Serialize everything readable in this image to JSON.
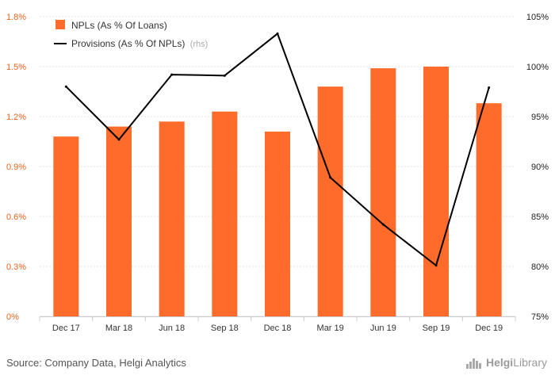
{
  "chart_data": {
    "type": "bar",
    "title": "",
    "categories": [
      "Dec 17",
      "Mar 18",
      "Jun 18",
      "Sep 18",
      "Dec 18",
      "Mar 19",
      "Jun 19",
      "Sep 19",
      "Dec 19"
    ],
    "series": [
      {
        "name": "NPLs (As % Of Loans)",
        "type": "bar",
        "axis": "left",
        "color": "#ff6b2b",
        "values": [
          1.08,
          1.14,
          1.17,
          1.23,
          1.11,
          1.38,
          1.49,
          1.5,
          1.28
        ]
      },
      {
        "name": "Provisions (As % Of NPLs)",
        "note": "(rhs)",
        "type": "line",
        "axis": "right",
        "color": "#000000",
        "values": [
          98.0,
          92.7,
          99.2,
          99.1,
          103.3,
          88.9,
          84.2,
          80.1,
          97.9
        ]
      }
    ],
    "y_left": {
      "lim": [
        0,
        1.8
      ],
      "ticks": [
        0,
        0.3,
        0.6,
        0.9,
        1.2,
        1.5,
        1.8
      ],
      "tick_labels": [
        "0%",
        "0.3%",
        "0.6%",
        "0.9%",
        "1.2%",
        "1.5%",
        "1.8%"
      ]
    },
    "y_right": {
      "lim": [
        75,
        105
      ],
      "ticks": [
        75,
        80,
        85,
        90,
        95,
        100,
        105
      ],
      "tick_labels": [
        "75%",
        "80%",
        "85%",
        "90%",
        "95%",
        "100%",
        "105%"
      ]
    },
    "legend_position": "top-left",
    "grid": true
  },
  "footer": {
    "source": "Source: Company Data, Helgi Analytics",
    "logo_word1": "Helgi",
    "logo_word2": "Library"
  }
}
